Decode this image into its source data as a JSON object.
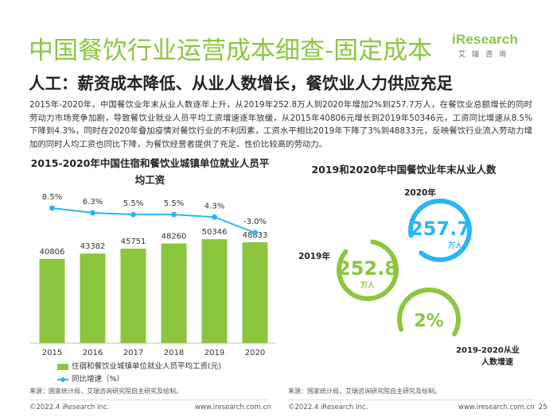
{
  "header": {
    "title": "中国餐饮行业运营成本细查-固定成本",
    "subtitle": "人工：薪资成本降低、从业人数增长，餐饮业人力供应充足",
    "logo_main": "iResearch",
    "logo_sub": "艾瑞咨询"
  },
  "body_text": "2015年-2020年，中国餐饮业年末从业人数逐年上升，从2019年252.8万人到2020年增加2%到257.7万人，在餐饮业总额增长的同时劳动力市场竞争加剧，导致餐饮业就业人员平均工资增速逐年放缓，从2015年40806元增长到2019年50346元，工资同比增速从8.5%下降到4.3%，同时在2020年叠加疫情对餐饮行业的不利因素，工资水平相比2019年下降了3%到48833元，反映餐饮行业流入劳动力增加的同时人均工资也同比下降，为餐饮经营者提供了充足、性价比较高的劳动力。",
  "chart_data": [
    {
      "type": "bar",
      "title": "2015-2020年中国住宿和餐饮业城镇单位就业人员平均工资",
      "categories": [
        "2015",
        "2016",
        "2017",
        "2018",
        "2019",
        "2020"
      ],
      "series": [
        {
          "name": "住宿和餐饮业城镇单位就业人员平均工资(元)",
          "type": "bar",
          "values": [
            40806,
            43382,
            45751,
            48260,
            50346,
            48833
          ],
          "color": "#8cc63f"
        },
        {
          "name": "同比增速（%）",
          "type": "line",
          "values": [
            8.5,
            6.3,
            5.5,
            5.5,
            4.3,
            -3.0
          ],
          "value_labels": [
            "8.5%",
            "6.3%",
            "5.5%",
            "5.5%",
            "4.3%",
            "-3.0%"
          ],
          "color": "#29b6f6"
        }
      ],
      "legend_position": "bottom"
    },
    {
      "type": "pie",
      "title": "2019和2020年中国餐饮业年末从业人数",
      "items": [
        {
          "year_label": "2019年",
          "value": "252.8",
          "unit": "万人",
          "color": "#8cc63f"
        },
        {
          "year_label": "2020年",
          "value": "257.7",
          "unit": "万人",
          "color": "#29b6f6"
        }
      ],
      "growth": {
        "value": "2%",
        "label_line1": "2019-2020从业",
        "label_line2": "人数增速",
        "color": "#8cc63f"
      }
    }
  ],
  "source": "来源：国家统计局，艾瑞咨询研究院自主研究及绘制。",
  "footer": {
    "copyright": "©2022.4 iResearch Inc.",
    "website": "www.iresearch.com.cn",
    "page": "25"
  }
}
